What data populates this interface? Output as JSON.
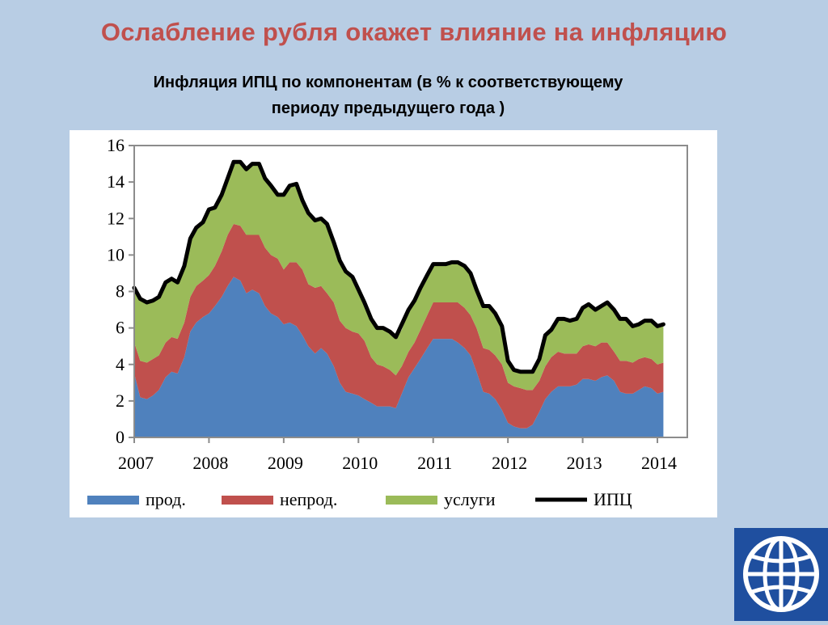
{
  "slide": {
    "title": "Ослабление рубля окажет влияние на инфляцию",
    "subtitle_line1": "Инфляция ИПЦ по компонентам (в % к соответствующему",
    "subtitle_line2": "периоду предыдущего года )"
  },
  "colors": {
    "background": "#b8cde4",
    "title": "#c0504d",
    "food": "#4f81bd",
    "nonfood": "#c0504d",
    "services": "#9bbb59",
    "cpi": "#000000",
    "logo": "#1f4f9f"
  },
  "logo": {
    "icon": "globe-icon"
  },
  "chart_data": {
    "type": "area",
    "stacked": true,
    "title": "Инфляция ИПЦ по компонентам (в % к соответствующему периоду предыдущего года )",
    "xlabel": "",
    "ylabel": "",
    "x_ticks": [
      "2007",
      "2008",
      "2009",
      "2010",
      "2011",
      "2012",
      "2013",
      "2014"
    ],
    "x_range": [
      2007,
      2014.4
    ],
    "ylim": [
      0,
      16
    ],
    "y_ticks": [
      0,
      2,
      4,
      6,
      8,
      10,
      12,
      14,
      16
    ],
    "grid": false,
    "legend_position": "bottom",
    "x": [
      2007.0,
      2007.08,
      2007.17,
      2007.25,
      2007.33,
      2007.42,
      2007.5,
      2007.58,
      2007.67,
      2007.75,
      2007.83,
      2007.92,
      2008.0,
      2008.08,
      2008.17,
      2008.25,
      2008.33,
      2008.42,
      2008.5,
      2008.58,
      2008.67,
      2008.75,
      2008.83,
      2008.92,
      2009.0,
      2009.08,
      2009.17,
      2009.25,
      2009.33,
      2009.42,
      2009.5,
      2009.58,
      2009.67,
      2009.75,
      2009.83,
      2009.92,
      2010.0,
      2010.08,
      2010.17,
      2010.25,
      2010.33,
      2010.42,
      2010.5,
      2010.58,
      2010.67,
      2010.75,
      2010.83,
      2010.92,
      2011.0,
      2011.08,
      2011.17,
      2011.25,
      2011.33,
      2011.42,
      2011.5,
      2011.58,
      2011.67,
      2011.75,
      2011.83,
      2011.92,
      2012.0,
      2012.08,
      2012.17,
      2012.25,
      2012.33,
      2012.42,
      2012.5,
      2012.58,
      2012.67,
      2012.75,
      2012.83,
      2012.92,
      2013.0,
      2013.08,
      2013.17,
      2013.25,
      2013.33,
      2013.42,
      2013.5,
      2013.58,
      2013.67,
      2013.75,
      2013.83,
      2013.92,
      2014.0,
      2014.08
    ],
    "series": [
      {
        "name": "прод.",
        "kind": "area",
        "values": [
          3.5,
          2.2,
          2.1,
          2.3,
          2.6,
          3.3,
          3.6,
          3.5,
          4.4,
          5.8,
          6.3,
          6.6,
          6.8,
          7.2,
          7.7,
          8.3,
          8.8,
          8.6,
          7.9,
          8.1,
          7.9,
          7.2,
          6.8,
          6.6,
          6.2,
          6.3,
          6.1,
          5.6,
          5.0,
          4.6,
          4.9,
          4.6,
          3.9,
          3.0,
          2.5,
          2.4,
          2.3,
          2.1,
          1.9,
          1.7,
          1.7,
          1.7,
          1.6,
          2.4,
          3.3,
          3.8,
          4.3,
          4.9,
          5.4,
          5.4,
          5.4,
          5.4,
          5.2,
          4.9,
          4.5,
          3.6,
          2.5,
          2.4,
          2.1,
          1.5,
          0.8,
          0.6,
          0.5,
          0.5,
          0.7,
          1.4,
          2.1,
          2.5,
          2.8,
          2.8,
          2.8,
          2.9,
          3.2,
          3.2,
          3.1,
          3.3,
          3.4,
          3.1,
          2.5,
          2.4,
          2.4,
          2.6,
          2.8,
          2.7,
          2.4,
          2.5
        ]
      },
      {
        "name": "непрод.",
        "kind": "area",
        "values": [
          1.7,
          2.0,
          2.0,
          2.0,
          1.9,
          1.9,
          1.9,
          1.9,
          1.9,
          1.9,
          2.0,
          2.0,
          2.1,
          2.2,
          2.5,
          2.8,
          2.9,
          3.0,
          3.2,
          3.0,
          3.2,
          3.2,
          3.2,
          3.2,
          3.0,
          3.3,
          3.5,
          3.6,
          3.4,
          3.6,
          3.4,
          3.3,
          3.5,
          3.4,
          3.5,
          3.4,
          3.4,
          3.2,
          2.5,
          2.3,
          2.2,
          2.0,
          1.8,
          1.5,
          1.4,
          1.4,
          1.6,
          1.8,
          2.0,
          2.0,
          2.0,
          2.0,
          2.2,
          2.2,
          2.2,
          2.4,
          2.4,
          2.4,
          2.4,
          2.5,
          2.2,
          2.2,
          2.2,
          2.1,
          1.9,
          1.7,
          1.8,
          1.9,
          1.9,
          1.8,
          1.8,
          1.7,
          1.8,
          1.9,
          1.9,
          1.9,
          1.8,
          1.6,
          1.7,
          1.8,
          1.7,
          1.7,
          1.6,
          1.6,
          1.6,
          1.6
        ]
      },
      {
        "name": "услуги",
        "kind": "area",
        "values": [
          3.0,
          3.4,
          3.3,
          3.2,
          3.2,
          3.3,
          3.2,
          3.1,
          3.1,
          3.2,
          3.2,
          3.2,
          3.6,
          3.2,
          3.1,
          3.1,
          3.4,
          3.5,
          3.6,
          3.9,
          3.9,
          3.8,
          3.8,
          3.5,
          4.1,
          4.2,
          4.3,
          3.8,
          3.9,
          3.6,
          3.7,
          3.8,
          3.3,
          3.3,
          3.0,
          2.9,
          2.4,
          2.1,
          2.1,
          2.0,
          2.1,
          2.1,
          2.0,
          2.0,
          2.2,
          2.3,
          2.3,
          2.2,
          2.1,
          2.0,
          2.0,
          2.1,
          2.2,
          2.3,
          2.3,
          2.1,
          2.3,
          2.4,
          2.3,
          2.1,
          1.2,
          0.9,
          0.9,
          0.9,
          1.0,
          1.3,
          1.7,
          1.5,
          1.8,
          1.9,
          1.8,
          1.9,
          2.0,
          2.1,
          2.0,
          2.0,
          2.2,
          2.3,
          2.3,
          2.3,
          2.0,
          1.9,
          2.0,
          2.1,
          2.1,
          2.1
        ]
      },
      {
        "name": "ИПЦ",
        "kind": "line",
        "values": [
          8.2,
          7.6,
          7.4,
          7.5,
          7.7,
          8.5,
          8.7,
          8.5,
          9.4,
          10.9,
          11.5,
          11.8,
          12.5,
          12.6,
          13.3,
          14.2,
          15.1,
          15.1,
          14.7,
          15.0,
          15.0,
          14.2,
          13.8,
          13.3,
          13.3,
          13.8,
          13.9,
          13.0,
          12.3,
          11.9,
          12.0,
          11.7,
          10.7,
          9.7,
          9.1,
          8.8,
          8.1,
          7.4,
          6.5,
          6.0,
          6.0,
          5.8,
          5.5,
          6.2,
          7.0,
          7.5,
          8.2,
          8.9,
          9.5,
          9.5,
          9.5,
          9.6,
          9.6,
          9.4,
          9.0,
          8.1,
          7.2,
          7.2,
          6.8,
          6.1,
          4.2,
          3.7,
          3.6,
          3.6,
          3.6,
          4.3,
          5.6,
          5.9,
          6.5,
          6.5,
          6.4,
          6.5,
          7.1,
          7.3,
          7.0,
          7.2,
          7.4,
          7.0,
          6.5,
          6.5,
          6.1,
          6.2,
          6.4,
          6.4,
          6.1,
          6.2
        ]
      }
    ]
  }
}
